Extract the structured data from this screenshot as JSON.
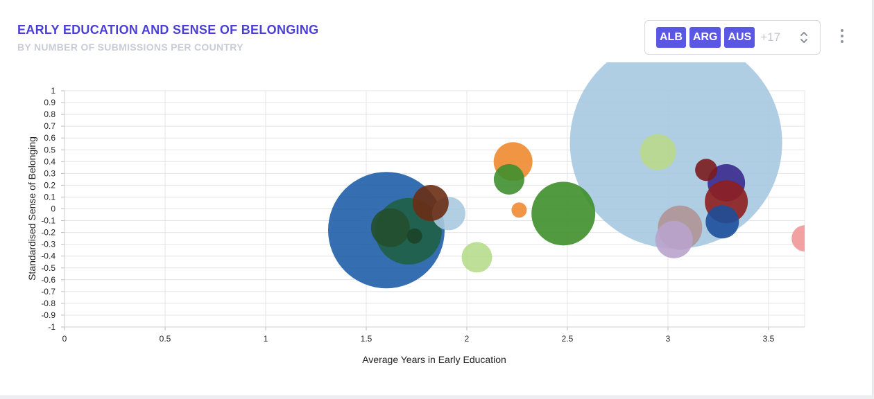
{
  "header": {
    "title": "EARLY EDUCATION AND SENSE OF BELONGING",
    "subtitle": "BY NUMBER OF SUBMISSIONS PER COUNTRY"
  },
  "filter": {
    "chips": [
      "ALB",
      "ARG",
      "AUS"
    ],
    "more": "+17"
  },
  "chart_data": {
    "type": "bubble",
    "xlabel": "Average Years in Early Education",
    "ylabel": "Standardised Sense of Belonging",
    "xlim": [
      0,
      3.68
    ],
    "ylim": [
      -1,
      1
    ],
    "xticks": [
      "0",
      "0.5",
      "1",
      "1.5",
      "2",
      "2.5",
      "3",
      "3.5"
    ],
    "yticks": [
      "1",
      "0.9",
      "0.8",
      "0.7",
      "0.6",
      "0.5",
      "0.4",
      "0.3",
      "0.2",
      "0.1",
      "0",
      "-0.1",
      "-0.2",
      "-0.3",
      "-0.4",
      "-0.5",
      "-0.6",
      "-0.7",
      "-0.8",
      "-0.9",
      "-1"
    ],
    "grid": true,
    "points": [
      {
        "x": 3.04,
        "y": 0.56,
        "r": 153,
        "color": "#a6c8e0"
      },
      {
        "x": 1.6,
        "y": -0.18,
        "r": 84,
        "color": "#1f5ea8"
      },
      {
        "x": 1.71,
        "y": -0.19,
        "r": 48,
        "color": "#1f5f46"
      },
      {
        "x": 2.48,
        "y": -0.04,
        "r": 46,
        "color": "#3e8f2a"
      },
      {
        "x": 3.06,
        "y": -0.16,
        "r": 32,
        "color": "#b09595"
      },
      {
        "x": 3.03,
        "y": -0.26,
        "r": 27,
        "color": "#b9a3cc"
      },
      {
        "x": 1.91,
        "y": -0.04,
        "r": 24,
        "color": "#a9c9df"
      },
      {
        "x": 2.23,
        "y": 0.4,
        "r": 28,
        "color": "#ee8a2f"
      },
      {
        "x": 2.95,
        "y": 0.48,
        "r": 26,
        "color": "#b9d98a"
      },
      {
        "x": 3.29,
        "y": 0.22,
        "r": 27,
        "color": "#3a2a8c"
      },
      {
        "x": 3.29,
        "y": 0.06,
        "r": 31,
        "color": "#8e1f1f"
      },
      {
        "x": 3.27,
        "y": -0.11,
        "r": 24,
        "color": "#1d4f9a"
      },
      {
        "x": 1.62,
        "y": -0.16,
        "r": 28,
        "color": "#234f2d"
      },
      {
        "x": 1.82,
        "y": 0.05,
        "r": 26,
        "color": "#6b2d14"
      },
      {
        "x": 2.21,
        "y": 0.25,
        "r": 22,
        "color": "#3f8f2f"
      },
      {
        "x": 2.05,
        "y": -0.41,
        "r": 22,
        "color": "#b6db8d"
      },
      {
        "x": 3.19,
        "y": 0.33,
        "r": 16,
        "color": "#7a1c1c"
      },
      {
        "x": 3.68,
        "y": -0.25,
        "r": 19,
        "color": "#ef9797"
      },
      {
        "x": 2.26,
        "y": -0.01,
        "r": 11,
        "color": "#ef8a33"
      },
      {
        "x": 1.74,
        "y": -0.23,
        "r": 11,
        "color": "#1c4428"
      }
    ]
  }
}
